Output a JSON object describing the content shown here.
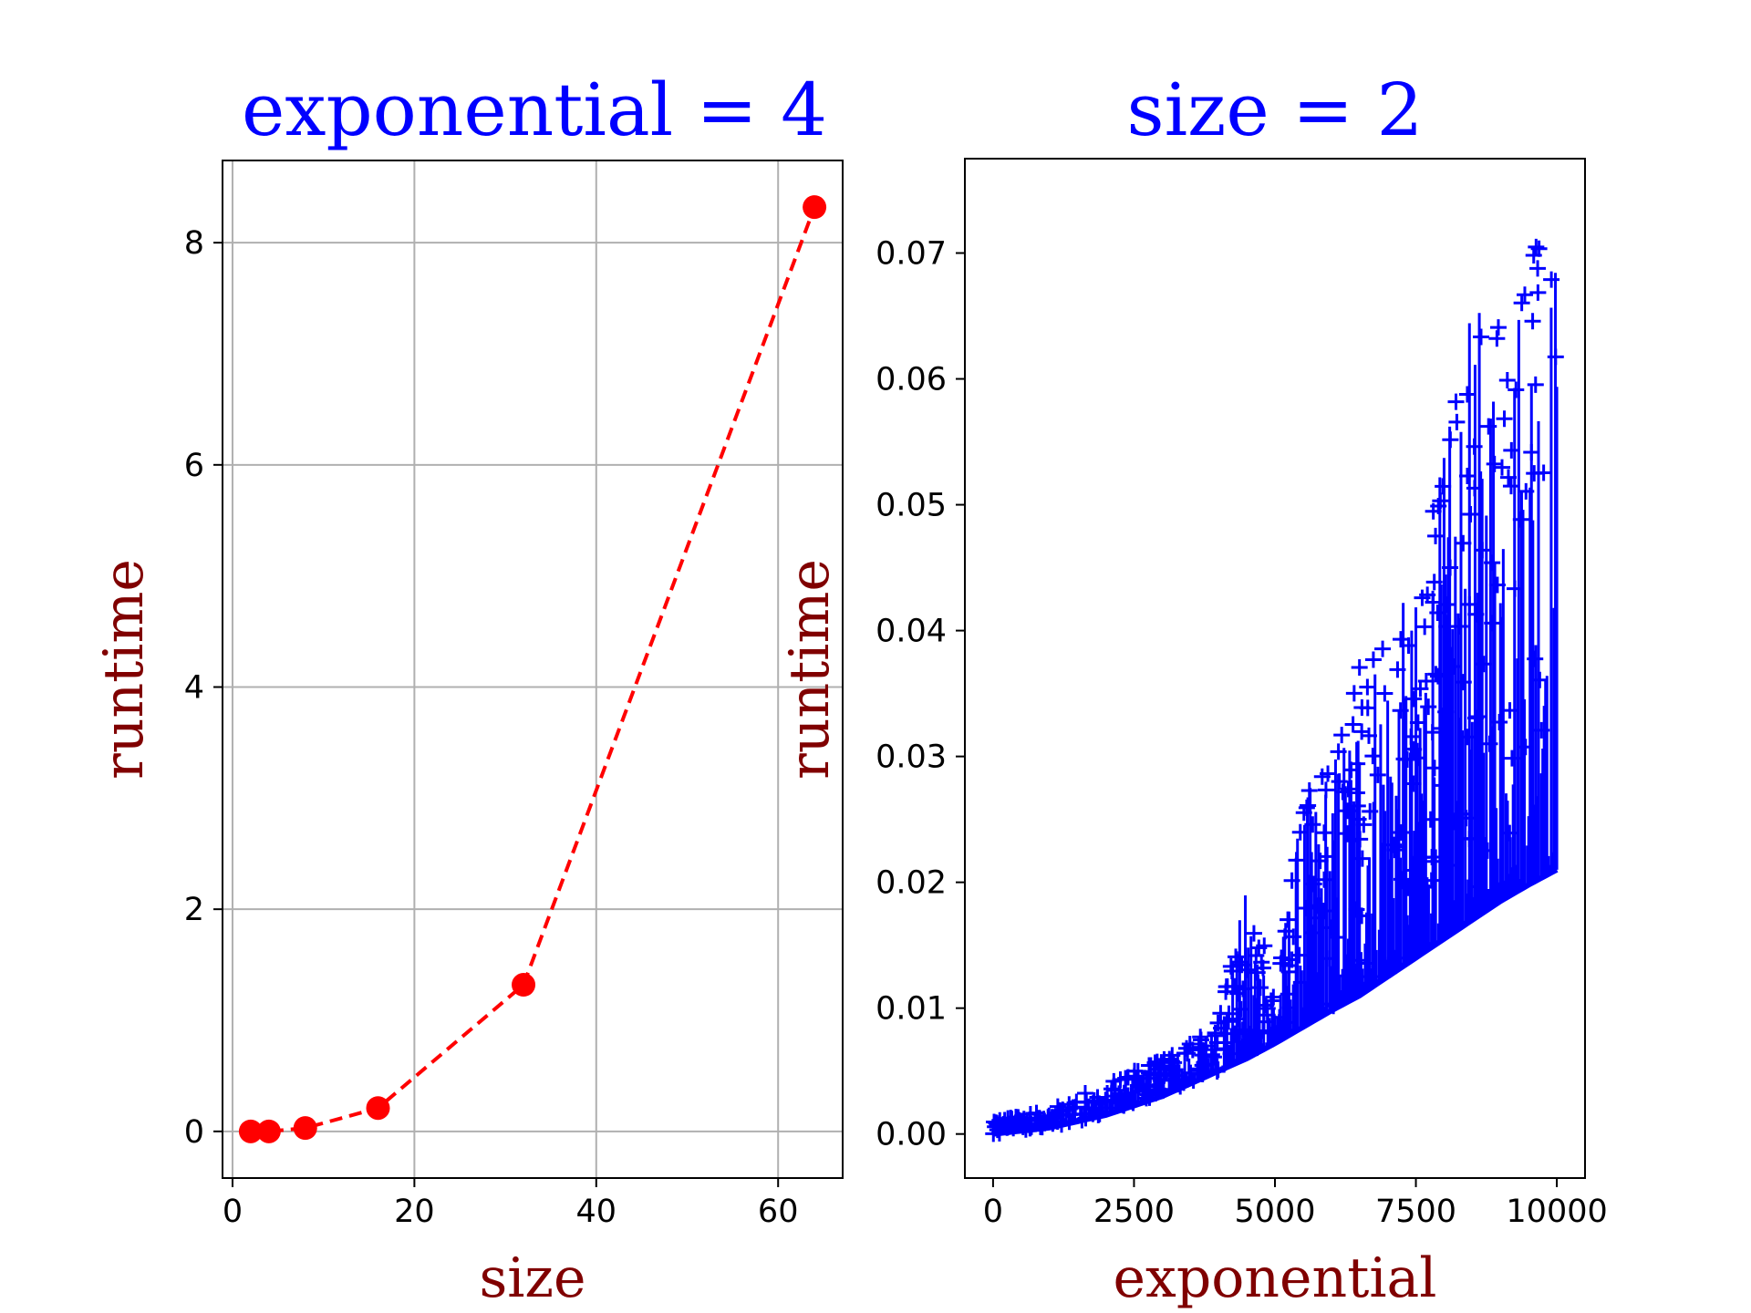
{
  "colors": {
    "title": "#0000ff",
    "axis_label": "#800000",
    "left_series": "#ff0000",
    "right_series": "#0000ff",
    "grid": "#b0b0b0"
  },
  "chart_data": [
    {
      "type": "line",
      "title": "exponential = 4",
      "xlabel": "size",
      "ylabel": "runtime",
      "grid": true,
      "line_style": "dashed",
      "marker": "circle",
      "series": [
        {
          "x": [
            2,
            4,
            8,
            16,
            32,
            64
          ],
          "y": [
            0.0,
            0.0,
            0.03,
            0.21,
            1.32,
            8.32
          ]
        }
      ],
      "xlim": [
        -1.1,
        67.1
      ],
      "ylim": [
        -0.42,
        8.74
      ],
      "xticks": [
        0,
        20,
        40,
        60
      ],
      "yticks": [
        0,
        2,
        4,
        6,
        8
      ]
    },
    {
      "type": "scatter",
      "title": "size = 2",
      "xlabel": "exponential",
      "ylabel": "runtime",
      "grid": false,
      "marker": "plus",
      "description_points": "dense cloud of ~10000 points; lower envelope grows roughly quadratically from 0 at x=0 to ~0.021 at x=10000; upper spikes reach ~0.073 near x=9900",
      "envelope": {
        "x": [
          0,
          1000,
          2000,
          3000,
          4000,
          4500,
          5000,
          5500,
          6000,
          6500,
          7000,
          7500,
          8000,
          8500,
          9000,
          9500,
          10000
        ],
        "lower": [
          0.0,
          0.0005,
          0.0015,
          0.003,
          0.005,
          0.006,
          0.0072,
          0.0085,
          0.0098,
          0.011,
          0.0125,
          0.014,
          0.0155,
          0.017,
          0.0185,
          0.0198,
          0.021
        ],
        "upper": [
          0.001,
          0.002,
          0.004,
          0.006,
          0.009,
          0.02,
          0.012,
          0.027,
          0.03,
          0.038,
          0.042,
          0.043,
          0.055,
          0.066,
          0.068,
          0.072,
          0.073
        ]
      },
      "xlim": [
        -500,
        10500
      ],
      "ylim": [
        -0.0035,
        0.0775
      ],
      "xticks": [
        0,
        2500,
        5000,
        7500,
        10000
      ],
      "yticks": [
        0.0,
        0.01,
        0.02,
        0.03,
        0.04,
        0.05,
        0.06,
        0.07
      ],
      "ytick_labels": [
        "0.00",
        "0.01",
        "0.02",
        "0.03",
        "0.04",
        "0.05",
        "0.06",
        "0.07"
      ]
    }
  ]
}
